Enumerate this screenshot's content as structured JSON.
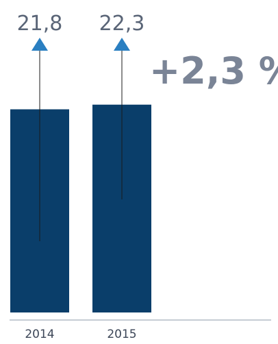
{
  "chart_data": {
    "type": "bar",
    "categories": [
      "2014",
      "2015"
    ],
    "values": [
      21.8,
      22.3
    ],
    "value_labels": [
      "21,8",
      "22,3"
    ],
    "change_label": "+2,3 %",
    "title": "",
    "xlabel": "",
    "ylabel": "",
    "grid": false,
    "colors": {
      "bar": "#0a3e6a",
      "arrow": "#2a7fc1",
      "arrow_line": "#1a1a1a",
      "value_text": "#5a6577",
      "change_text": "#7a8496",
      "axis": "#8e98a8",
      "tick_text": "#3c4657"
    }
  }
}
